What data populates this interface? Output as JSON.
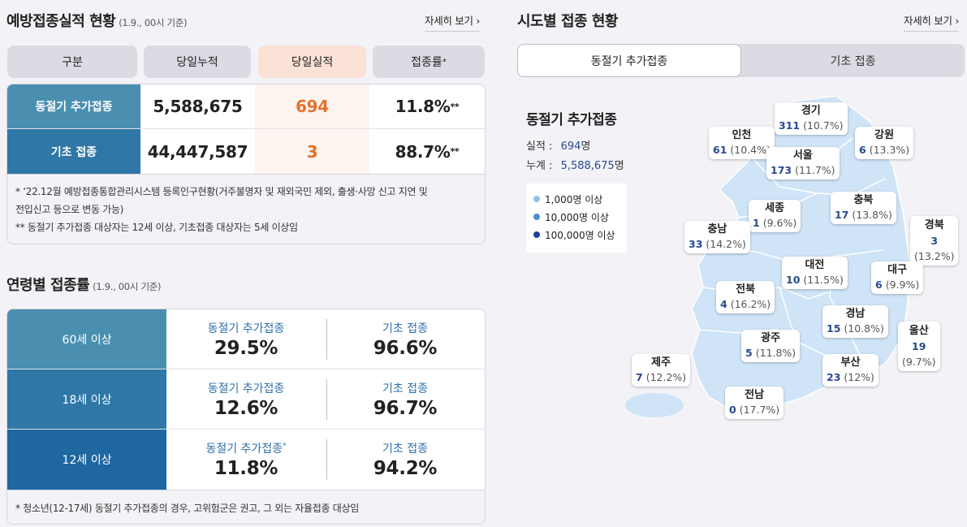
{
  "left": {
    "title": "예방접종실적 현황",
    "title_sub": "(1.9., 00시 기준)",
    "more": "자세히 보기 ›",
    "headers": [
      "구분",
      "당일누적",
      "당일실적",
      "접종률"
    ],
    "header_sup": "*",
    "rows": [
      {
        "label": "동절기 추가접종",
        "cumulative": "5,588,675",
        "daily": "694",
        "rate": "11.8%",
        "sup": "**"
      },
      {
        "label": "기초 접종",
        "cumulative": "44,447,587",
        "daily": "3",
        "rate": "88.7%",
        "sup": "**"
      }
    ],
    "notes": [
      "* ‘22.12월 예방접종통합관리시스템 등록인구현황(거주불명자 및 재외국민 제외, 출생·사망 신고 지연 및",
      "전입신고 등으로 변동 가능)",
      "** 동절기 추가접종 대상자는 12세 이상, 기초접종 대상자는 5세 이상임"
    ]
  },
  "age": {
    "title": "연령별 접종률",
    "title_sub": "(1.9., 00시 기준)",
    "rows": [
      {
        "label": "60세 이상",
        "a_label": "동절기 추가접종",
        "a_sup": "",
        "a_value": "29.5%",
        "b_label": "기초 접종",
        "b_value": "96.6%"
      },
      {
        "label": "18세 이상",
        "a_label": "동절기 추가접종",
        "a_sup": "",
        "a_value": "12.6%",
        "b_label": "기초 접종",
        "b_value": "96.7%"
      },
      {
        "label": "12세 이상",
        "a_label": "동절기 추가접종",
        "a_sup": "*",
        "a_value": "11.8%",
        "b_label": "기초 접종",
        "b_value": "94.2%"
      }
    ],
    "note": "* 청소년(12-17세) 동절기 추가접종의 경우, 고위험군은 권고, 그 외는 자율접종 대상임"
  },
  "region": {
    "title": "시도별 접종 현황",
    "more": "자세히 보기 ›",
    "tabs": [
      {
        "label": "동절기 추가접종",
        "active": true
      },
      {
        "label": "기초 접종",
        "active": false
      }
    ],
    "info_title": "동절기 추가접종",
    "daily_label": "실적 :",
    "daily_value": "694",
    "daily_unit": "명",
    "total_label": "누계 :",
    "total_value": "5,588,675",
    "total_unit": "명",
    "legend": [
      {
        "label": "1,000명 이상",
        "color": "#8fc3ea"
      },
      {
        "label": "10,000명 이상",
        "color": "#4a8fd9"
      },
      {
        "label": "100,000명 이상",
        "color": "#1f3f9e"
      }
    ],
    "regions": [
      {
        "name": "경기",
        "count": "311",
        "pct": "(10.7%)"
      },
      {
        "name": "인천",
        "count": "61",
        "pct": "(10.4%)"
      },
      {
        "name": "강원",
        "count": "6",
        "pct": "(13.3%)"
      },
      {
        "name": "서울",
        "count": "173",
        "pct": "(11.7%)"
      },
      {
        "name": "세종",
        "count": "1",
        "pct": "(9.6%)"
      },
      {
        "name": "충북",
        "count": "17",
        "pct": "(13.8%)"
      },
      {
        "name": "충남",
        "count": "33",
        "pct": "(14.2%)"
      },
      {
        "name": "경북",
        "count": "3",
        "pct": "(13.2%)"
      },
      {
        "name": "대전",
        "count": "10",
        "pct": "(11.5%)"
      },
      {
        "name": "대구",
        "count": "6",
        "pct": "(9.9%)"
      },
      {
        "name": "전북",
        "count": "4",
        "pct": "(16.2%)"
      },
      {
        "name": "경남",
        "count": "15",
        "pct": "(10.8%)"
      },
      {
        "name": "울산",
        "count": "19",
        "pct": "(9.7%)"
      },
      {
        "name": "광주",
        "count": "5",
        "pct": "(11.8%)"
      },
      {
        "name": "제주",
        "count": "7",
        "pct": "(12.2%)"
      },
      {
        "name": "부산",
        "count": "23",
        "pct": "(12%)"
      },
      {
        "name": "전남",
        "count": "0",
        "pct": "(17.7%)"
      }
    ]
  },
  "colors": {
    "teal_light": "#4a8fb0",
    "teal_mid": "#2e77a6",
    "teal_dark": "#1f67a0",
    "orange": "#e5722a",
    "map_fill": "#cfe4f7"
  }
}
